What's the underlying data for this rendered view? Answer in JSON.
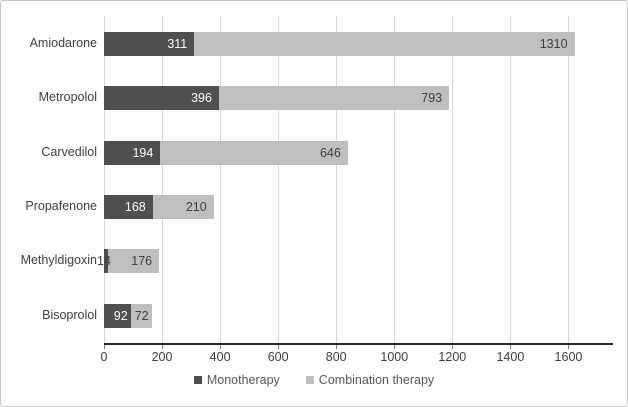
{
  "chart_data": {
    "type": "bar",
    "orientation": "horizontal",
    "stacked": true,
    "title": "",
    "xlabel": "",
    "ylabel": "",
    "categories": [
      "Amiodarone",
      "Metropolol",
      "Carvedilol",
      "Propafenone",
      "Methyldigoxin",
      "Bisoprolol"
    ],
    "series": [
      {
        "name": "Monotherapy",
        "color": "#4f4f4f",
        "label_color": "#ffffff",
        "values": [
          311,
          396,
          194,
          168,
          14,
          92
        ]
      },
      {
        "name": "Combination therapy",
        "color": "#bfbfbf",
        "label_color": "#404040",
        "values": [
          1310,
          793,
          646,
          210,
          176,
          72
        ]
      }
    ],
    "totals": [
      1621,
      1189,
      840,
      378,
      190,
      164
    ],
    "xlim": [
      0,
      1750
    ],
    "xticks": [
      0,
      200,
      400,
      600,
      800,
      1000,
      1200,
      1400,
      1600
    ],
    "grid": "vertical-gridlines-on",
    "legend_position": "bottom",
    "data_labels": "inside-end"
  },
  "legend": {
    "items": [
      {
        "label": "Monotherapy",
        "color": "#4f4f4f"
      },
      {
        "label": "Combination therapy",
        "color": "#bfbfbf"
      }
    ]
  },
  "colors": {
    "background": "#ffffff",
    "frame_border": "#c9c9c9",
    "gridline": "#d9d9d9",
    "axis_line": "#262626",
    "tick_text": "#3f3f3f",
    "category_text": "#404040",
    "legend_text": "#595959"
  }
}
